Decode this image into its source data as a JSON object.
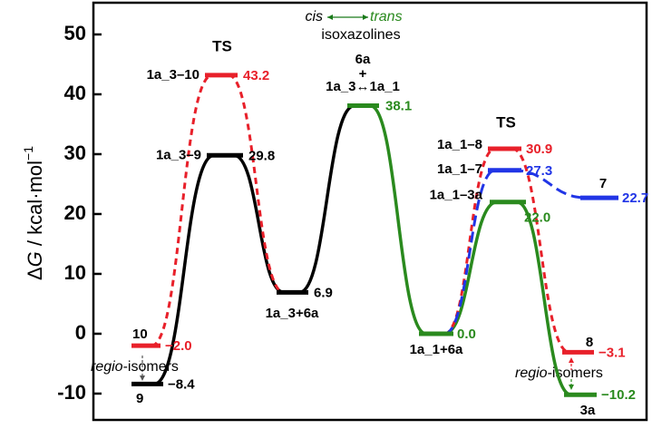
{
  "chart_data": {
    "type": "energy_profile",
    "y_label": {
      "delta": "Δ",
      "symbol": "G",
      "unit": " / kcal·mol",
      "exponent": "−1"
    },
    "ylim": [
      -14.4,
      55.3
    ],
    "yticks": [
      {
        "value": -10,
        "label": "-10"
      },
      0,
      10,
      20,
      30,
      40,
      50
    ],
    "levels": [
      {
        "name": "10",
        "value": -2.0,
        "value_label": "−2.0",
        "color": "#e8202a"
      },
      {
        "name": "9",
        "value": -8.4,
        "value_label": "−8.4",
        "color": "#000000"
      },
      {
        "name": "1a_3–9",
        "value": 29.8,
        "value_label": "29.8",
        "color": "#000000"
      },
      {
        "name": "1a_3–10",
        "value": 43.2,
        "value_label": "43.2",
        "color": "#e8202a"
      },
      {
        "name": "1a_3+6a",
        "value": 6.9,
        "value_label": "6.9",
        "color": "#000000"
      },
      {
        "name": "1a_3↔1a_1",
        "value": 38.1,
        "value_label": "38.1",
        "color": "#2a8a1e"
      },
      {
        "name": "1a_1+6a",
        "value": 0.0,
        "value_label": "0.0",
        "color": "#2a8a1e"
      },
      {
        "name": "1a_1–8",
        "value": 30.9,
        "value_label": "30.9",
        "color": "#e8202a"
      },
      {
        "name": "1a_1–7",
        "value": 27.3,
        "value_label": "27.3",
        "color": "#2135e6"
      },
      {
        "name": "1a_1–3a",
        "value": 22.0,
        "value_label": "22.0",
        "color": "#2a8a1e"
      },
      {
        "name": "7",
        "value": 22.7,
        "value_label": "22.7",
        "color": "#2135e6"
      },
      {
        "name": "8",
        "value": -3.1,
        "value_label": "−3.1",
        "color": "#e8202a"
      },
      {
        "name": "3a",
        "value": -10.2,
        "value_label": "−10.2",
        "color": "#2a8a1e"
      }
    ],
    "annotations": {
      "ts_left": "TS",
      "ts_right": "TS",
      "cis": "cis",
      "trans": "trans",
      "isoxazolines": "isoxazolines",
      "reagent": "6a",
      "plus": "+",
      "regio_left": "regio",
      "isomers_left": "-isomers",
      "regio_right": "regio",
      "isomers_right": "-isomers"
    }
  }
}
